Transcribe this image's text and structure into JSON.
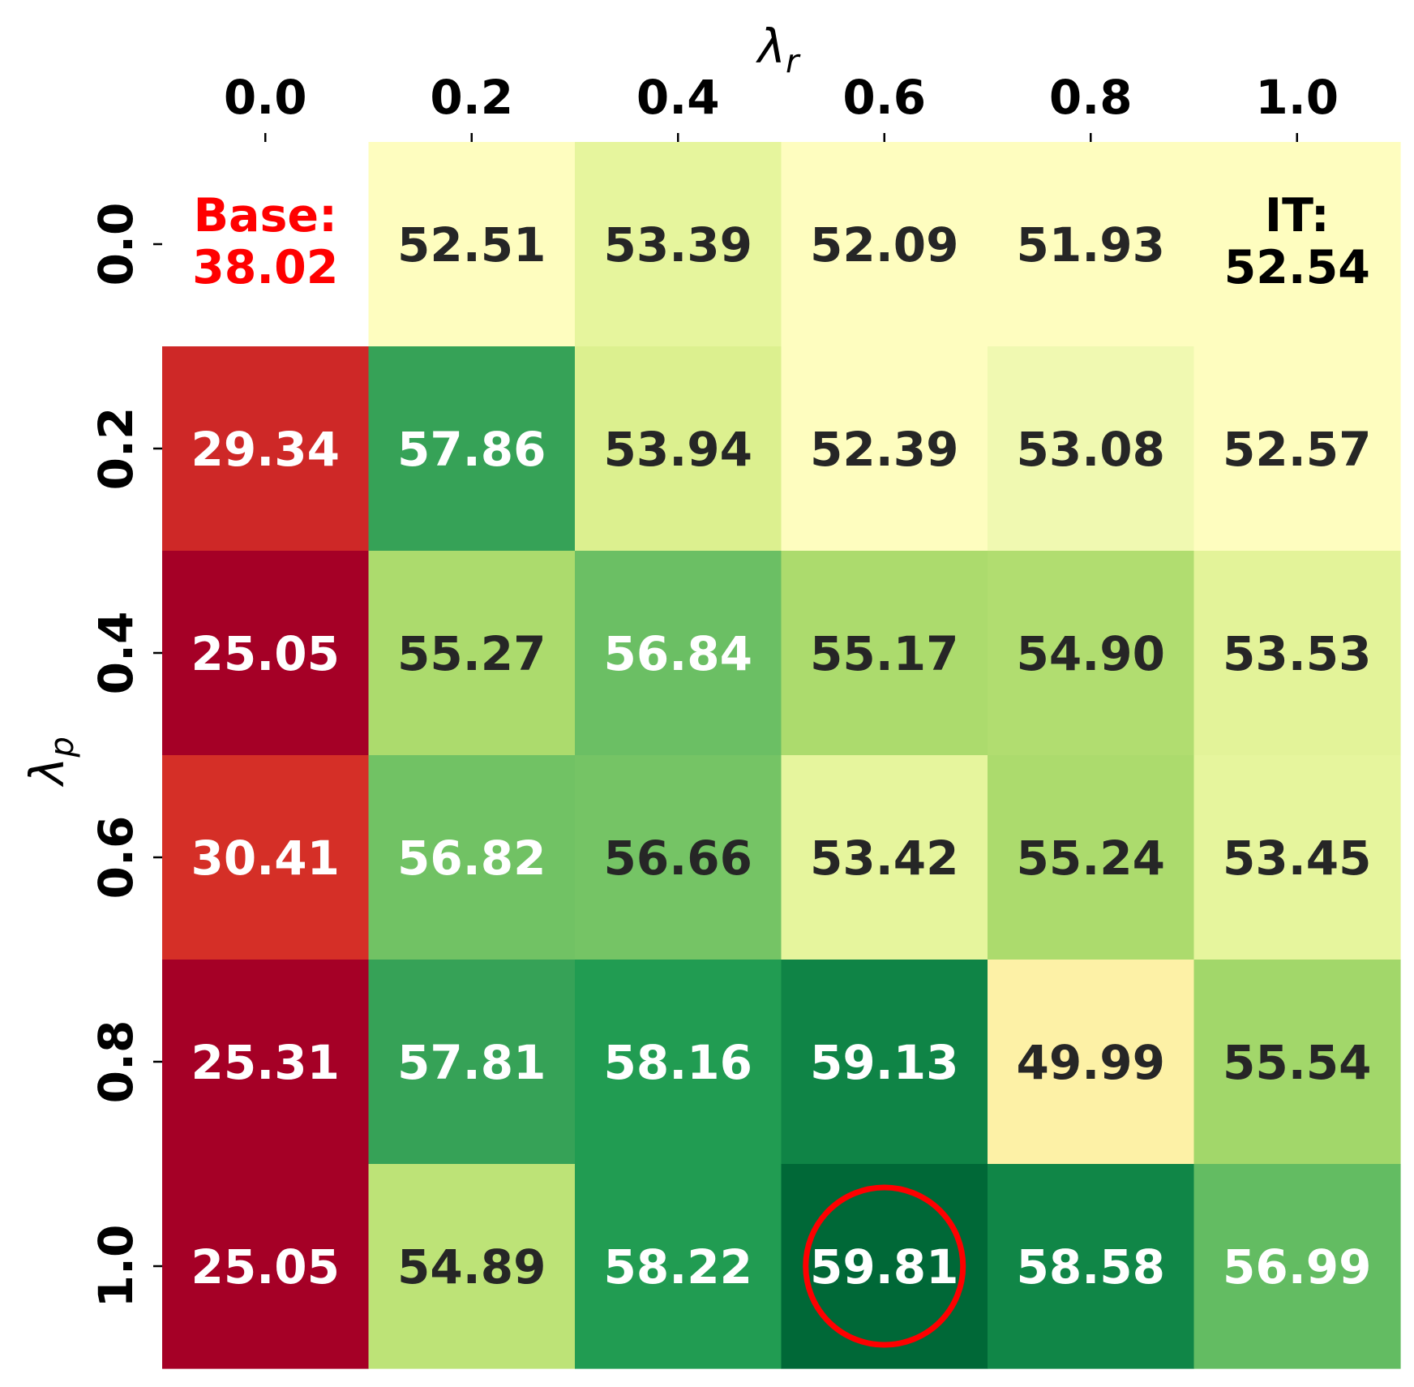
{
  "chart_data": {
    "type": "heatmap",
    "xlabel": "λ",
    "xlabel_sub": "r",
    "ylabel": "λ",
    "ylabel_sub": "p",
    "x_ticks": [
      "0.0",
      "0.2",
      "0.4",
      "0.6",
      "0.8",
      "1.0"
    ],
    "y_ticks": [
      "0.0",
      "0.2",
      "0.4",
      "0.6",
      "0.8",
      "1.0"
    ],
    "x_axis_position": "top",
    "colormap": "RdYlGn",
    "color_range": [
      25.05,
      59.81
    ],
    "values": [
      [
        38.02,
        52.51,
        53.39,
        52.09,
        51.93,
        52.54
      ],
      [
        29.34,
        57.86,
        53.94,
        52.39,
        53.08,
        52.57
      ],
      [
        25.05,
        55.27,
        56.84,
        55.17,
        54.9,
        53.53
      ],
      [
        30.41,
        56.82,
        56.66,
        53.42,
        55.24,
        53.45
      ],
      [
        25.31,
        57.81,
        58.16,
        59.13,
        49.99,
        55.54
      ],
      [
        25.05,
        54.89,
        58.22,
        59.81,
        58.58,
        56.99
      ]
    ],
    "cell_colors": [
      [
        null,
        "#fefdbf",
        "#e6f59d",
        "#fefdbf",
        "#fefdbf",
        "#fefdbf"
      ],
      [
        "#ce2827",
        "#36a257",
        "#dcf08f",
        "#fefdbf",
        "#f0f9b1",
        "#fefdbf"
      ],
      [
        "#a50026",
        "#acdb6d",
        "#6bbf64",
        "#acdb6d",
        "#b1dd70",
        "#e3f399"
      ],
      [
        "#d52f27",
        "#71c264",
        "#75c465",
        "#e6f59d",
        "#acdb6d",
        "#e6f59d"
      ],
      [
        "#a50026",
        "#36a257",
        "#219c52",
        "#0f8446",
        "#fdf1a6",
        "#a2d76a"
      ],
      [
        "#a50026",
        "#bde377",
        "#219c52",
        "#006837",
        "#108647",
        "#63bc62"
      ]
    ],
    "text_colors": [
      [
        null,
        "#262626",
        "#262626",
        "#262626",
        "#262626",
        "#000000"
      ],
      [
        "#ffffff",
        "#ffffff",
        "#262626",
        "#262626",
        "#262626",
        "#262626"
      ],
      [
        "#ffffff",
        "#262626",
        "#ffffff",
        "#262626",
        "#262626",
        "#262626"
      ],
      [
        "#ffffff",
        "#ffffff",
        "#262626",
        "#262626",
        "#262626",
        "#262626"
      ],
      [
        "#ffffff",
        "#ffffff",
        "#ffffff",
        "#ffffff",
        "#262626",
        "#262626"
      ],
      [
        "#ffffff",
        "#262626",
        "#ffffff",
        "#ffffff",
        "#ffffff",
        "#ffffff"
      ]
    ],
    "annotations": [
      {
        "row": 0,
        "col": 0,
        "lines": [
          "Base:",
          "38.02"
        ],
        "color": "#ff0000"
      },
      {
        "row": 0,
        "col": 5,
        "lines": [
          "IT:",
          "52.54"
        ],
        "color": "#000000"
      }
    ],
    "highlight": {
      "row": 5,
      "col": 3,
      "shape": "circle",
      "color": "#ff0000"
    }
  }
}
